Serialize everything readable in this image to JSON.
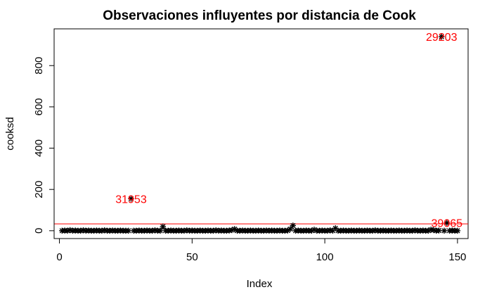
{
  "chart_data": {
    "type": "scatter",
    "title": "Observaciones influyentes por distancia de Cook",
    "xlabel": "Index",
    "ylabel": "cooksd",
    "xlim": [
      -2,
      154
    ],
    "ylim": [
      -38,
      978
    ],
    "x_ticks": [
      0,
      50,
      100,
      150
    ],
    "y_ticks": [
      0,
      200,
      400,
      600,
      800
    ],
    "marker": "asterisk",
    "threshold": {
      "value": 33,
      "color": "#ff0000"
    },
    "x": [
      1,
      2,
      3,
      4,
      5,
      6,
      7,
      8,
      9,
      10,
      11,
      12,
      13,
      14,
      15,
      16,
      17,
      18,
      19,
      20,
      21,
      22,
      23,
      24,
      25,
      26,
      27,
      28,
      29,
      30,
      31,
      32,
      33,
      34,
      35,
      36,
      37,
      38,
      39,
      40,
      41,
      42,
      43,
      44,
      45,
      46,
      47,
      48,
      49,
      50,
      51,
      52,
      53,
      54,
      55,
      56,
      57,
      58,
      59,
      60,
      61,
      62,
      63,
      64,
      65,
      66,
      67,
      68,
      69,
      70,
      71,
      72,
      73,
      74,
      75,
      76,
      77,
      78,
      79,
      80,
      81,
      82,
      83,
      84,
      85,
      86,
      87,
      88,
      89,
      90,
      91,
      92,
      93,
      94,
      95,
      96,
      97,
      98,
      99,
      100,
      101,
      102,
      103,
      104,
      105,
      106,
      107,
      108,
      109,
      110,
      111,
      112,
      113,
      114,
      115,
      116,
      117,
      118,
      119,
      120,
      121,
      122,
      123,
      124,
      125,
      126,
      127,
      128,
      129,
      130,
      131,
      132,
      133,
      134,
      135,
      136,
      137,
      138,
      139,
      140,
      141,
      142,
      143,
      144,
      145,
      146,
      147,
      148,
      149,
      150
    ],
    "y": [
      0,
      1,
      0,
      3,
      0,
      1,
      0,
      0,
      2,
      0,
      1,
      0,
      0,
      1,
      0,
      0,
      2,
      0,
      0,
      1,
      0,
      0,
      1,
      0,
      0,
      0,
      155,
      0,
      0,
      1,
      0,
      0,
      1,
      0,
      0,
      2,
      0,
      0,
      20,
      0,
      0,
      1,
      0,
      0,
      1,
      0,
      0,
      2,
      0,
      1,
      0,
      0,
      1,
      0,
      0,
      1,
      0,
      0,
      2,
      0,
      1,
      0,
      0,
      1,
      3,
      8,
      0,
      0,
      1,
      0,
      0,
      1,
      0,
      0,
      1,
      0,
      0,
      1,
      0,
      1,
      0,
      0,
      1,
      0,
      0,
      1,
      8,
      25,
      0,
      1,
      0,
      0,
      1,
      0,
      0,
      5,
      0,
      0,
      1,
      0,
      0,
      2,
      0,
      12,
      0,
      0,
      1,
      0,
      0,
      1,
      0,
      0,
      1,
      0,
      0,
      1,
      0,
      0,
      2,
      0,
      0,
      1,
      0,
      0,
      1,
      0,
      0,
      1,
      0,
      0,
      1,
      0,
      0,
      2,
      0,
      0,
      1,
      0,
      0,
      5,
      3,
      0,
      1,
      940,
      0,
      38,
      0,
      1,
      0,
      0
    ],
    "annotations": [
      {
        "label": "31953",
        "x": 27,
        "y": 155
      },
      {
        "label": "29203",
        "x": 144,
        "y": 940
      },
      {
        "label": "39065",
        "x": 146,
        "y": 38
      }
    ],
    "annotation_color": "#ff0000"
  }
}
